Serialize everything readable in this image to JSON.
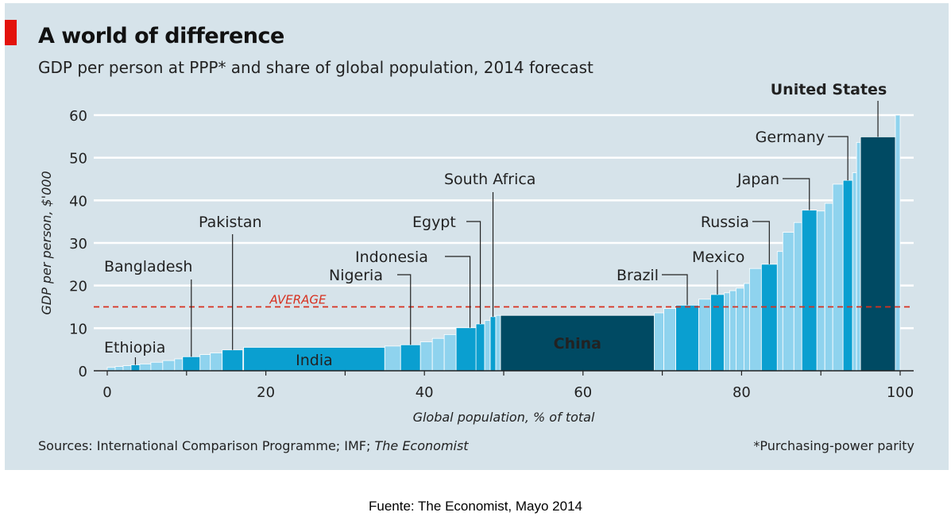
{
  "header": {
    "title": "A world of difference",
    "subtitle": "GDP per person at PPP* and share of global population, 2014 forecast"
  },
  "footer": {
    "sources_prefix": "Sources: International Comparison Programme; IMF; ",
    "sources_publication": "The Economist",
    "footnote": "*Purchasing-power parity"
  },
  "caption": "Fuente: The Economist, Mayo 2014",
  "colors": {
    "background": "#d6e3ea",
    "bar_light": "#8fd3ee",
    "bar_medium": "#0a9fd0",
    "bar_dark": "#004a63",
    "average_line": "#d7301f",
    "accent": "#e3120b"
  },
  "chart_data": {
    "type": "bar",
    "variable_width": true,
    "title": "A world of difference",
    "subtitle": "GDP per person at PPP* and share of global population, 2014 forecast",
    "xlabel": "Global population, % of total",
    "ylabel": "GDP per person, $'000",
    "xlim": [
      0,
      100
    ],
    "ylim": [
      0,
      60
    ],
    "xticks": [
      0,
      20,
      40,
      60,
      80,
      100
    ],
    "yticks": [
      0,
      10,
      20,
      30,
      40,
      50,
      60
    ],
    "grid": true,
    "average": {
      "label": "AVERAGE",
      "value": 15
    },
    "series": [
      {
        "x0": 0,
        "x1": 1.0,
        "value": 0.8
      },
      {
        "x0": 1.0,
        "x1": 2.0,
        "value": 1.0
      },
      {
        "x0": 2.0,
        "x1": 3.0,
        "value": 1.2
      },
      {
        "x0": 3.0,
        "x1": 4.1,
        "value": 1.4,
        "name": "Ethiopia",
        "highlight": "medium",
        "label": "Ethiopia"
      },
      {
        "x0": 4.1,
        "x1": 5.5,
        "value": 1.6
      },
      {
        "x0": 5.5,
        "x1": 7.0,
        "value": 2.0
      },
      {
        "x0": 7.0,
        "x1": 8.5,
        "value": 2.4
      },
      {
        "x0": 8.5,
        "x1": 9.5,
        "value": 2.8
      },
      {
        "x0": 9.5,
        "x1": 11.7,
        "value": 3.3,
        "name": "Bangladesh",
        "highlight": "medium",
        "label": "Bangladesh"
      },
      {
        "x0": 11.7,
        "x1": 13.0,
        "value": 3.8
      },
      {
        "x0": 13.0,
        "x1": 14.5,
        "value": 4.2
      },
      {
        "x0": 14.5,
        "x1": 17.1,
        "value": 4.9,
        "name": "Pakistan",
        "highlight": "medium",
        "label": "Pakistan"
      },
      {
        "x0": 17.2,
        "x1": 35.0,
        "value": 5.5,
        "name": "India",
        "highlight": "medium",
        "label": "India",
        "inside": true
      },
      {
        "x0": 35.0,
        "x1": 37.0,
        "value": 5.8
      },
      {
        "x0": 37.0,
        "x1": 39.5,
        "value": 6.1,
        "name": "Nigeria",
        "highlight": "medium",
        "label": "Nigeria"
      },
      {
        "x0": 39.5,
        "x1": 41.0,
        "value": 6.8
      },
      {
        "x0": 41.0,
        "x1": 42.5,
        "value": 7.6
      },
      {
        "x0": 42.5,
        "x1": 44.0,
        "value": 8.5
      },
      {
        "x0": 44.0,
        "x1": 47.5,
        "value": 10.1,
        "name": "Indonesia",
        "highlight": "medium",
        "label": "Indonesia"
      },
      {
        "x0": 46.5,
        "x1": 47.6,
        "value": 11.0,
        "name": "Egypt",
        "highlight": "medium",
        "label": "Egypt"
      },
      {
        "x0": 47.6,
        "x1": 48.3,
        "value": 11.8
      },
      {
        "x0": 48.3,
        "x1": 49.0,
        "value": 12.7,
        "name": "South Africa",
        "highlight": "medium",
        "label": "South Africa"
      },
      {
        "x0": 49.0,
        "x1": 49.6,
        "value": 13.0
      },
      {
        "x0": 49.6,
        "x1": 69.0,
        "value": 13.0,
        "name": "China",
        "highlight": "dark",
        "label": "China",
        "inside": true
      },
      {
        "x0": 69.0,
        "x1": 70.2,
        "value": 13.6
      },
      {
        "x0": 70.2,
        "x1": 71.7,
        "value": 14.6
      },
      {
        "x0": 71.7,
        "x1": 74.6,
        "value": 15.4,
        "name": "Brazil",
        "highlight": "medium",
        "label": "Brazil"
      },
      {
        "x0": 74.6,
        "x1": 76.1,
        "value": 16.8
      },
      {
        "x0": 76.1,
        "x1": 77.8,
        "value": 17.9,
        "name": "Mexico",
        "highlight": "medium",
        "label": "Mexico"
      },
      {
        "x0": 77.8,
        "x1": 78.5,
        "value": 18.3
      },
      {
        "x0": 78.5,
        "x1": 79.3,
        "value": 18.8
      },
      {
        "x0": 79.3,
        "x1": 80.3,
        "value": 19.4
      },
      {
        "x0": 80.3,
        "x1": 81.0,
        "value": 20.5
      },
      {
        "x0": 81.0,
        "x1": 82.5,
        "value": 24.0
      },
      {
        "x0": 82.5,
        "x1": 84.5,
        "value": 25.0,
        "name": "Russia",
        "highlight": "medium",
        "label": "Russia"
      },
      {
        "x0": 84.5,
        "x1": 85.2,
        "value": 28.0
      },
      {
        "x0": 85.2,
        "x1": 86.6,
        "value": 32.5
      },
      {
        "x0": 86.6,
        "x1": 87.6,
        "value": 34.8
      },
      {
        "x0": 87.6,
        "x1": 89.5,
        "value": 37.7,
        "name": "Japan",
        "highlight": "medium",
        "label": "Japan"
      },
      {
        "x0": 89.5,
        "x1": 90.5,
        "value": 37.5
      },
      {
        "x0": 90.5,
        "x1": 91.5,
        "value": 39.3
      },
      {
        "x0": 91.5,
        "x1": 92.8,
        "value": 43.8
      },
      {
        "x0": 92.8,
        "x1": 94.0,
        "value": 44.7,
        "name": "Germany",
        "highlight": "medium",
        "label": "Germany"
      },
      {
        "x0": 94.0,
        "x1": 94.5,
        "value": 46.5
      },
      {
        "x0": 94.5,
        "x1": 95.0,
        "value": 53.6
      },
      {
        "x0": 95.0,
        "x1": 99.4,
        "value": 54.9,
        "name": "United States",
        "highlight": "dark",
        "label": "United States",
        "bold": true
      },
      {
        "x0": 99.4,
        "x1": 100,
        "value": 60.0
      }
    ]
  }
}
